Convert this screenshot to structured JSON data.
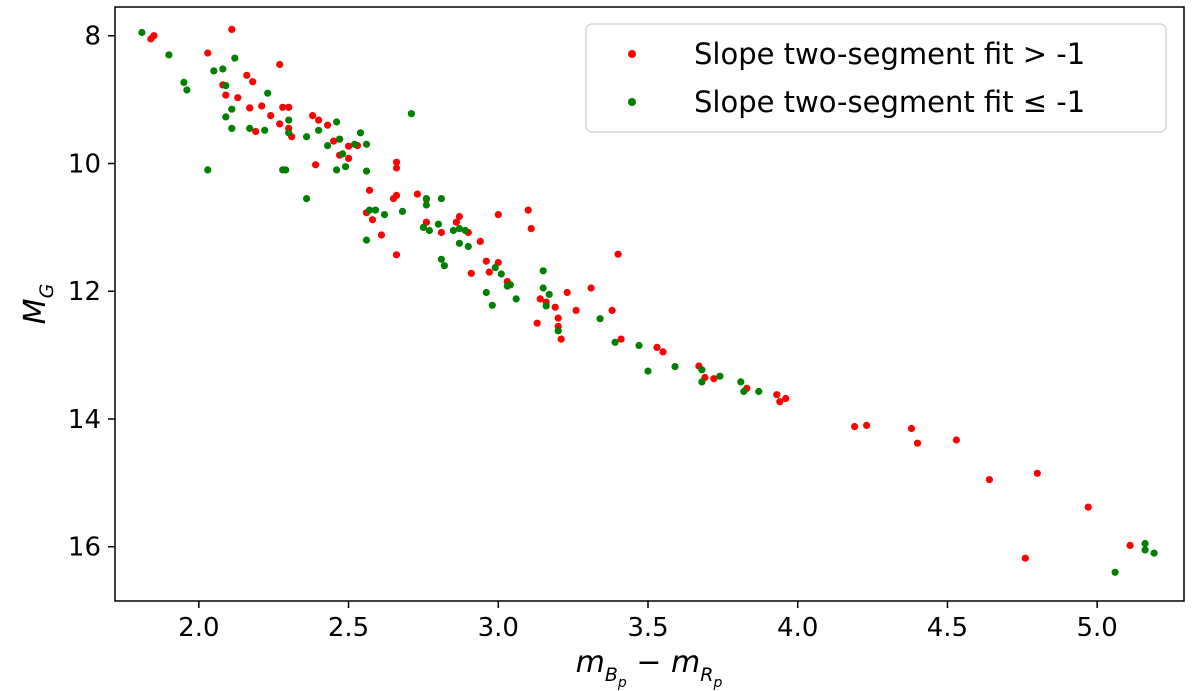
{
  "chart_data": {
    "type": "scatter",
    "title": "",
    "xlabel": {
      "m1": "m",
      "sub1": "B",
      "subsub1": "p",
      "minus": " − ",
      "m2": "m",
      "sub2": "R",
      "subsub2": "p"
    },
    "ylabel": {
      "main": "M",
      "sub": "G"
    },
    "xlim": [
      1.72,
      5.29
    ],
    "ylim": [
      16.85,
      7.55
    ],
    "y_inverted": true,
    "xticks": [
      2.0,
      2.5,
      3.0,
      3.5,
      4.0,
      4.5,
      5.0
    ],
    "xtick_labels": [
      "2.0",
      "2.5",
      "3.0",
      "3.5",
      "4.0",
      "4.5",
      "5.0"
    ],
    "yticks": [
      8,
      10,
      12,
      14,
      16
    ],
    "ytick_labels": [
      "8",
      "10",
      "12",
      "14",
      "16"
    ],
    "grid": false,
    "legend_position": "top-right",
    "series": [
      {
        "name": "Slope two-segment fit > -1",
        "color": "#ff0000",
        "points": [
          [
            1.84,
            8.05
          ],
          [
            1.85,
            8.0
          ],
          [
            2.03,
            8.27
          ],
          [
            2.11,
            7.9
          ],
          [
            2.16,
            8.62
          ],
          [
            2.18,
            8.72
          ],
          [
            2.27,
            8.45
          ],
          [
            2.08,
            8.77
          ],
          [
            2.09,
            8.93
          ],
          [
            2.13,
            8.97
          ],
          [
            2.17,
            9.13
          ],
          [
            2.21,
            9.1
          ],
          [
            2.28,
            9.12
          ],
          [
            2.3,
            9.12
          ],
          [
            2.24,
            9.25
          ],
          [
            2.27,
            9.38
          ],
          [
            2.3,
            9.45
          ],
          [
            2.19,
            9.5
          ],
          [
            2.31,
            9.58
          ],
          [
            2.38,
            9.25
          ],
          [
            2.4,
            9.32
          ],
          [
            2.43,
            9.4
          ],
          [
            2.45,
            9.65
          ],
          [
            2.47,
            9.62
          ],
          [
            2.5,
            9.73
          ],
          [
            2.53,
            9.72
          ],
          [
            2.47,
            9.87
          ],
          [
            2.5,
            9.92
          ],
          [
            2.39,
            10.02
          ],
          [
            2.57,
            10.42
          ],
          [
            2.66,
            9.98
          ],
          [
            2.66,
            10.07
          ],
          [
            2.66,
            10.5
          ],
          [
            2.65,
            10.55
          ],
          [
            2.73,
            10.48
          ],
          [
            2.76,
            10.56
          ],
          [
            2.56,
            10.77
          ],
          [
            2.58,
            10.88
          ],
          [
            2.61,
            11.12
          ],
          [
            2.66,
            11.43
          ],
          [
            2.76,
            10.92
          ],
          [
            2.81,
            11.08
          ],
          [
            2.87,
            10.83
          ],
          [
            2.86,
            10.92
          ],
          [
            2.9,
            11.08
          ],
          [
            2.94,
            11.22
          ],
          [
            2.96,
            11.53
          ],
          [
            2.97,
            11.7
          ],
          [
            2.91,
            11.72
          ],
          [
            3.0,
            11.55
          ],
          [
            3.03,
            11.85
          ],
          [
            3.0,
            10.8
          ],
          [
            3.1,
            10.73
          ],
          [
            3.11,
            11.02
          ],
          [
            3.14,
            12.12
          ],
          [
            3.13,
            12.5
          ],
          [
            3.16,
            12.17
          ],
          [
            3.19,
            12.25
          ],
          [
            3.2,
            12.42
          ],
          [
            3.2,
            12.55
          ],
          [
            3.21,
            12.75
          ],
          [
            3.23,
            12.02
          ],
          [
            3.26,
            12.3
          ],
          [
            3.31,
            11.95
          ],
          [
            3.4,
            11.42
          ],
          [
            3.38,
            12.3
          ],
          [
            3.41,
            12.75
          ],
          [
            3.53,
            12.88
          ],
          [
            3.55,
            12.95
          ],
          [
            3.67,
            13.17
          ],
          [
            3.69,
            13.35
          ],
          [
            3.72,
            13.37
          ],
          [
            3.83,
            13.52
          ],
          [
            3.93,
            13.62
          ],
          [
            3.94,
            13.73
          ],
          [
            3.96,
            13.68
          ],
          [
            4.19,
            14.12
          ],
          [
            4.23,
            14.1
          ],
          [
            4.38,
            14.15
          ],
          [
            4.4,
            14.38
          ],
          [
            4.53,
            14.33
          ],
          [
            4.64,
            14.95
          ],
          [
            4.76,
            16.18
          ],
          [
            4.8,
            14.85
          ],
          [
            4.97,
            15.38
          ],
          [
            5.11,
            15.98
          ]
        ]
      },
      {
        "name": "Slope two-segment fit ≤ -1",
        "color": "#008000",
        "points": [
          [
            1.81,
            7.95
          ],
          [
            1.9,
            8.3
          ],
          [
            1.95,
            8.73
          ],
          [
            1.96,
            8.85
          ],
          [
            2.05,
            8.55
          ],
          [
            2.08,
            8.52
          ],
          [
            2.12,
            8.35
          ],
          [
            2.09,
            8.78
          ],
          [
            2.23,
            8.9
          ],
          [
            2.11,
            9.15
          ],
          [
            2.09,
            9.27
          ],
          [
            2.11,
            9.45
          ],
          [
            2.17,
            9.45
          ],
          [
            2.22,
            9.48
          ],
          [
            2.3,
            9.32
          ],
          [
            2.3,
            9.52
          ],
          [
            2.36,
            9.58
          ],
          [
            2.4,
            9.48
          ],
          [
            2.46,
            9.35
          ],
          [
            2.43,
            9.72
          ],
          [
            2.47,
            9.62
          ],
          [
            2.52,
            9.7
          ],
          [
            2.54,
            9.52
          ],
          [
            2.56,
            9.7
          ],
          [
            2.48,
            9.85
          ],
          [
            2.49,
            10.05
          ],
          [
            2.46,
            10.1
          ],
          [
            2.56,
            10.12
          ],
          [
            2.03,
            10.1
          ],
          [
            2.28,
            10.1
          ],
          [
            2.29,
            10.1
          ],
          [
            2.36,
            10.55
          ],
          [
            2.57,
            10.73
          ],
          [
            2.59,
            10.73
          ],
          [
            2.62,
            10.8
          ],
          [
            2.68,
            10.75
          ],
          [
            2.56,
            11.2
          ],
          [
            2.76,
            10.55
          ],
          [
            2.76,
            10.65
          ],
          [
            2.81,
            10.55
          ],
          [
            2.75,
            11.0
          ],
          [
            2.77,
            11.05
          ],
          [
            2.8,
            10.95
          ],
          [
            2.85,
            11.05
          ],
          [
            2.87,
            11.02
          ],
          [
            2.89,
            11.05
          ],
          [
            2.87,
            11.25
          ],
          [
            2.9,
            11.3
          ],
          [
            2.81,
            11.5
          ],
          [
            2.82,
            11.6
          ],
          [
            2.71,
            9.22
          ],
          [
            2.99,
            11.63
          ],
          [
            3.01,
            11.73
          ],
          [
            3.03,
            11.92
          ],
          [
            3.04,
            11.9
          ],
          [
            3.06,
            12.12
          ],
          [
            2.96,
            12.02
          ],
          [
            2.98,
            12.22
          ],
          [
            3.15,
            11.68
          ],
          [
            3.15,
            11.95
          ],
          [
            3.17,
            12.05
          ],
          [
            3.16,
            12.23
          ],
          [
            3.2,
            12.62
          ],
          [
            3.34,
            12.43
          ],
          [
            3.39,
            12.8
          ],
          [
            3.47,
            12.85
          ],
          [
            3.5,
            13.25
          ],
          [
            3.59,
            13.18
          ],
          [
            3.68,
            13.23
          ],
          [
            3.68,
            13.42
          ],
          [
            3.74,
            13.33
          ],
          [
            3.81,
            13.42
          ],
          [
            3.82,
            13.57
          ],
          [
            3.87,
            13.57
          ],
          [
            5.06,
            16.4
          ],
          [
            5.16,
            15.95
          ],
          [
            5.16,
            16.05
          ],
          [
            5.19,
            16.1
          ]
        ]
      }
    ]
  }
}
